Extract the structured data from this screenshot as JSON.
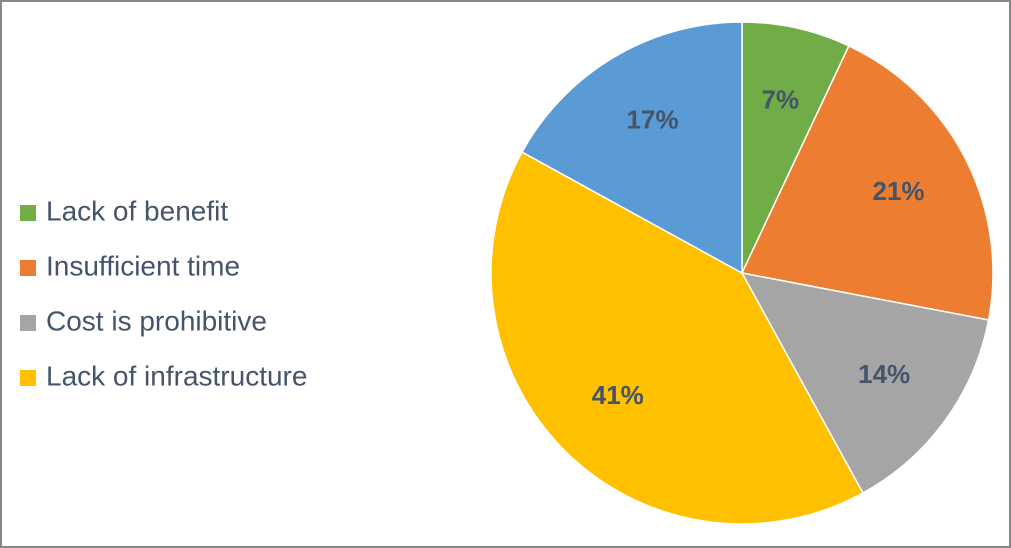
{
  "chart_data": {
    "type": "pie",
    "categories": [
      "Lack of benefit",
      "Insufficient time",
      "Cost is prohibitive",
      "Lack of infrastructure",
      null
    ],
    "values": [
      7,
      21,
      14,
      41,
      17
    ],
    "value_labels": [
      "7%",
      "21%",
      "14%",
      "41%",
      "17%"
    ],
    "colors": [
      "#70ad47",
      "#ed7d31",
      "#a5a5a5",
      "#ffc000",
      "#5b9bd5"
    ],
    "legend": "left"
  }
}
